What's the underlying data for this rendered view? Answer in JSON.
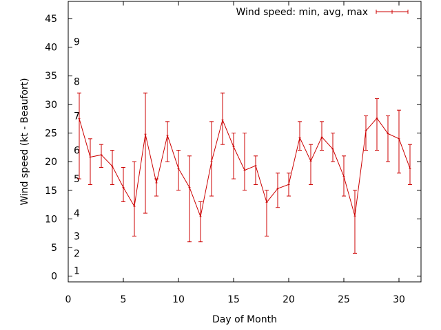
{
  "chart_data": {
    "type": "line",
    "xlabel": "Day of Month",
    "ylabel": "Wind speed (kt - Beaufort)",
    "xlim": [
      0,
      32
    ],
    "ylim": [
      -1,
      48
    ],
    "xticks": [
      0,
      5,
      10,
      15,
      20,
      25,
      30
    ],
    "yticks": [
      0,
      5,
      10,
      15,
      20,
      25,
      30,
      35,
      40,
      45
    ],
    "beaufort_labels": [
      {
        "label": "1",
        "y": 1
      },
      {
        "label": "2",
        "y": 4
      },
      {
        "label": "3",
        "y": 7
      },
      {
        "label": "4",
        "y": 11
      },
      {
        "label": "5",
        "y": 17
      },
      {
        "label": "6",
        "y": 22
      },
      {
        "label": "7",
        "y": 28
      },
      {
        "label": "8",
        "y": 34
      },
      {
        "label": "9",
        "y": 41
      }
    ],
    "legend": {
      "label": "Wind speed: min, avg, max",
      "position": "top-right"
    },
    "series_color": "#cc0000",
    "series": [
      {
        "x": [
          1,
          2,
          3,
          4,
          5,
          6,
          7,
          8,
          9,
          10,
          11,
          12,
          13,
          14,
          15,
          16,
          17,
          18,
          19,
          20,
          21,
          22,
          23,
          24,
          25,
          26,
          27,
          28,
          29,
          30,
          31
        ],
        "avg": [
          27.5,
          20.8,
          21.2,
          19.2,
          15.5,
          12.2,
          24.8,
          16.3,
          24.6,
          18.8,
          15.5,
          10.4,
          20.0,
          27.3,
          22.6,
          18.5,
          19.3,
          12.9,
          15.3,
          16.0,
          24.2,
          20.1,
          24.3,
          22.2,
          17.4,
          10.5,
          25.4,
          27.6,
          24.9,
          24.0,
          18.8
        ],
        "min": [
          17,
          16,
          19,
          16,
          13,
          7,
          11,
          14,
          20,
          15,
          6,
          6,
          14,
          23,
          17,
          15,
          16,
          7,
          12,
          14,
          22,
          16,
          22,
          20,
          14,
          4,
          22,
          22,
          20,
          18,
          16
        ],
        "max": [
          32,
          24,
          23,
          22,
          19,
          20,
          32,
          17,
          27,
          22,
          21,
          13,
          27,
          32,
          25,
          25,
          21,
          15,
          18,
          18,
          27,
          23,
          27,
          25,
          21,
          15,
          28,
          31,
          28,
          29,
          23
        ]
      }
    ]
  }
}
